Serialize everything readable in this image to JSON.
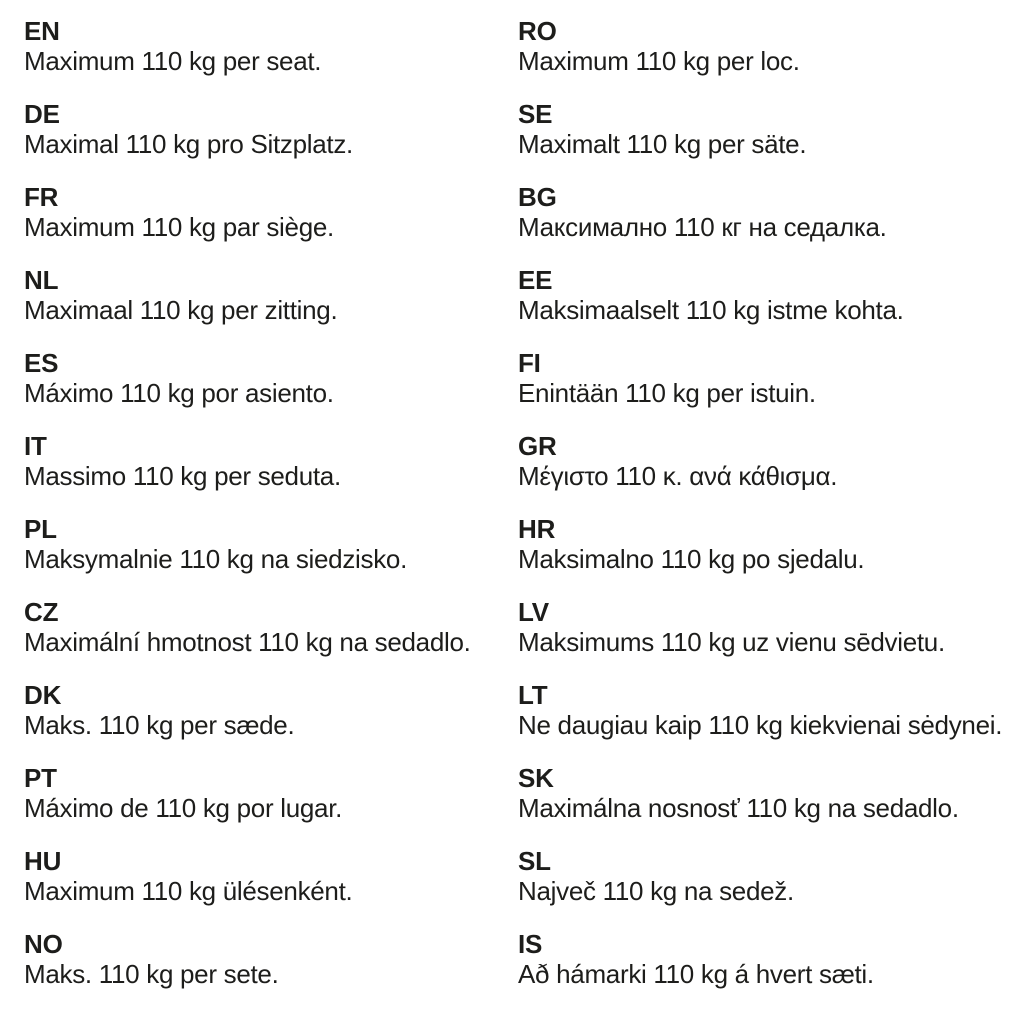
{
  "page": {
    "background_color": "#ffffff",
    "text_color": "#1d1d1b"
  },
  "columns": [
    {
      "name": "left",
      "entries": [
        {
          "code": "EN",
          "text": "Maximum 110 kg per seat."
        },
        {
          "code": "DE",
          "text": "Maximal 110 kg pro Sitzplatz."
        },
        {
          "code": "FR",
          "text": "Maximum 110 kg par siège."
        },
        {
          "code": "NL",
          "text": "Maximaal 110 kg per zitting."
        },
        {
          "code": "ES",
          "text": "Máximo 110 kg por asiento."
        },
        {
          "code": "IT",
          "text": "Massimo 110 kg per seduta."
        },
        {
          "code": "PL",
          "text": "Maksymalnie 110 kg na siedzisko."
        },
        {
          "code": "CZ",
          "text": "Maximální hmotnost 110 kg na sedadlo."
        },
        {
          "code": "DK",
          "text": "Maks. 110 kg per sæde."
        },
        {
          "code": "PT",
          "text": "Máximo de 110 kg por lugar."
        },
        {
          "code": "HU",
          "text": "Maximum 110 kg ülésenként."
        },
        {
          "code": "NO",
          "text": "Maks. 110 kg per sete."
        }
      ]
    },
    {
      "name": "right",
      "entries": [
        {
          "code": "RO",
          "text": "Maximum 110 kg per loc."
        },
        {
          "code": "SE",
          "text": "Maximalt 110 kg per säte."
        },
        {
          "code": "BG",
          "text": "Максимално 110 кг на седалка."
        },
        {
          "code": "EE",
          "text": "Maksimaalselt 110 kg istme kohta."
        },
        {
          "code": "FI",
          "text": "Enintään 110 kg per istuin."
        },
        {
          "code": "GR",
          "text": "Μέγιστο 110 κ. ανά κάθισμα."
        },
        {
          "code": "HR",
          "text": "Maksimalno 110 kg po sjedalu."
        },
        {
          "code": "LV",
          "text": "Maksimums 110 kg uz vienu sēdvietu."
        },
        {
          "code": "LT",
          "text": "Ne daugiau kaip 110 kg kiekvienai sėdynei."
        },
        {
          "code": "SK",
          "text": "Maximálna nosnosť 110 kg na sedadlo."
        },
        {
          "code": "SL",
          "text": "Največ 110 kg na sedež."
        },
        {
          "code": "IS",
          "text": "Að hámarki 110 kg á hvert sæti."
        }
      ]
    }
  ]
}
